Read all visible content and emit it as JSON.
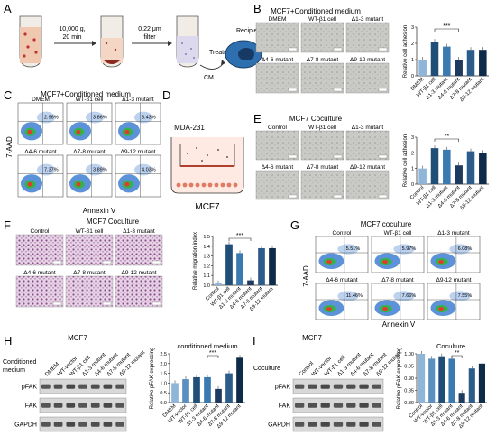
{
  "panels": {
    "A": {
      "letter": "A",
      "spin": "10,000 g,",
      "spin_time": "20 min",
      "filter": "0.22 μm",
      "filter2": "filter",
      "treatment": "Treatment",
      "cm": "CM",
      "recipient": "Recipient cell"
    },
    "B": {
      "letter": "B",
      "title": "MCF7+Conditioned medium",
      "tiles": [
        "DMEM",
        "WT-β1 cell",
        "Δ1-3 mutant",
        "Δ4-6 mutant",
        "Δ7-8 mutant",
        "Δ9-12 mutant"
      ],
      "sig": "***"
    },
    "C": {
      "letter": "C",
      "title": "MCF7+Conditioned medium",
      "ylabel": "7-AAD",
      "xlabel": "Annexin V",
      "tiles": [
        "DMEM",
        "WT-β1 cell",
        "Δ1-3 mutant",
        "Δ4-6 mutant",
        "Δ7-8 mutant",
        "Δ9-12 mutant"
      ],
      "pcts": [
        "2.96%",
        "3.86%",
        "3.43%",
        "7.37%",
        "3.89%",
        "4.03%"
      ]
    },
    "D": {
      "letter": "D",
      "top": "MDA-231",
      "bottom": "MCF7"
    },
    "E": {
      "letter": "E",
      "title": "MCF7 Coculture",
      "tiles": [
        "Control",
        "WT-β1 cell",
        "Δ1-3 mutant",
        "Δ4-6 mutant",
        "Δ7-8 mutant",
        "Δ9-12 mutant"
      ],
      "sig": "**"
    },
    "F": {
      "letter": "F",
      "title": "MCF7 Coculture",
      "tiles": [
        "Control",
        "WT-β1 cell",
        "Δ1-3 mutant",
        "Δ4-6 mutant",
        "Δ7-8 mutant",
        "Δ9-12 mutant"
      ],
      "sig": "***"
    },
    "G": {
      "letter": "G",
      "title": "MCF7 coculture",
      "ylabel": "7-AAD",
      "xlabel": "Annexin V",
      "tiles": [
        "Control",
        "WT-β1 cell",
        "Δ1-3 mutant",
        "Δ4-6 mutant",
        "Δ7-8 mutant",
        "Δ9-12 mutant"
      ],
      "pcts": [
        "5.51%",
        "5.97%",
        "6.08%",
        "11.46%",
        "7.66%",
        "7.55%"
      ]
    },
    "H": {
      "letter": "H",
      "title": "MCF7",
      "side": "Conditioned",
      "side2": "medium",
      "lanes": [
        "DMEM",
        "WT-vector",
        "WT-β1 cell",
        "Δ1-3 mutant",
        "Δ4-6 mutant",
        "Δ7-8 mutant",
        "Δ9-12 mutant"
      ],
      "blots": [
        "pFAK",
        "FAK",
        "GAPDH"
      ],
      "sig": "***"
    },
    "I": {
      "letter": "I",
      "title": "MCF7",
      "side": "Coculture",
      "lanes": [
        "Control",
        "WT-vector",
        "WT-β1 cell",
        "Δ1-3 mutant",
        "Δ4-6 mutant",
        "Δ7-8 mutant",
        "Δ9-12 mutant"
      ],
      "blots": [
        "pFAK",
        "FAK",
        "GAPDH"
      ],
      "sig": "**"
    }
  },
  "chart_data": [
    {
      "id": "B",
      "type": "bar",
      "title": "",
      "ylabel": "Relative cell adhesion",
      "categories": [
        "DMEM",
        "WT-β1 cell",
        "Δ1-3 mutant",
        "Δ4-6 mutant",
        "Δ7-8 mutant",
        "Δ9-12 mutant"
      ],
      "values": [
        1.0,
        2.1,
        1.8,
        1.0,
        1.6,
        1.6
      ],
      "ylim": [
        0,
        3
      ],
      "ticks": [
        "0",
        "1",
        "2",
        "3"
      ],
      "colors": [
        "#8fb5d9",
        "#1f4e79",
        "#3a7ab0",
        "#1f3a5f",
        "#2c5c8a",
        "#0f2b4a"
      ]
    },
    {
      "id": "E",
      "type": "bar",
      "title": "",
      "ylabel": "Relative cell adhesion",
      "categories": [
        "Control",
        "WT-β1 cell",
        "Δ1-3 mutant",
        "Δ4-6 mutant",
        "Δ7-8 mutant",
        "Δ9-12 mutant"
      ],
      "values": [
        1.0,
        2.3,
        2.2,
        1.2,
        2.1,
        2.0
      ],
      "ylim": [
        0,
        3
      ],
      "ticks": [
        "0",
        "1",
        "2",
        "3"
      ],
      "colors": [
        "#8fb5d9",
        "#1f4e79",
        "#3a7ab0",
        "#1f3a5f",
        "#2c5c8a",
        "#0f2b4a"
      ]
    },
    {
      "id": "F",
      "type": "bar",
      "title": "",
      "ylabel": "Relative migration index",
      "categories": [
        "Control",
        "WT-β1 cell",
        "Δ1-3 mutant",
        "Δ4-6 mutant",
        "Δ7-8 mutant",
        "Δ9-12 mutant"
      ],
      "values": [
        1.02,
        1.42,
        1.33,
        1.05,
        1.38,
        1.38
      ],
      "ylim": [
        1.0,
        1.5
      ],
      "ticks": [
        "1.0",
        "1.1",
        "1.2",
        "1.3",
        "1.4",
        "1.5"
      ],
      "colors": [
        "#8fb5d9",
        "#1f4e79",
        "#3a7ab0",
        "#1f3a5f",
        "#2c5c8a",
        "#0f2b4a"
      ]
    },
    {
      "id": "H",
      "type": "bar",
      "title": "conditioned medium",
      "ylabel": "Relative pFAK expressing",
      "categories": [
        "DMEM",
        "WT-vector",
        "WT-β1 cell",
        "Δ1-3 mutant",
        "Δ4-6 mutant",
        "Δ7-8 mutant",
        "Δ9-12 mutant"
      ],
      "values": [
        1.0,
        1.2,
        1.3,
        1.3,
        0.7,
        1.5,
        2.3
      ],
      "ylim": [
        0,
        2.5
      ],
      "ticks": [
        "0.0",
        "0.5",
        "1.0",
        "1.5",
        "2.0",
        "2.5"
      ],
      "colors": [
        "#8fb5d9",
        "#5a8fc0",
        "#1f4e79",
        "#3a7ab0",
        "#1f3a5f",
        "#2c5c8a",
        "#0f2b4a"
      ]
    },
    {
      "id": "I",
      "type": "bar",
      "title": "Coculture",
      "ylabel": "Relative pFAK expressing",
      "categories": [
        "Control",
        "WT-vector",
        "WT-β1 cell",
        "Δ1-3 mutant",
        "Δ4-6 mutant",
        "Δ7-8 mutant",
        "Δ9-12 mutant"
      ],
      "values": [
        1.0,
        0.98,
        0.99,
        0.98,
        0.84,
        0.94,
        0.96
      ],
      "ylim": [
        0.8,
        1.0
      ],
      "ticks": [
        "0.80",
        "0.85",
        "0.90",
        "0.95",
        "1.00"
      ],
      "colors": [
        "#8fb5d9",
        "#5a8fc0",
        "#1f4e79",
        "#3a7ab0",
        "#1f3a5f",
        "#2c5c8a",
        "#0f2b4a"
      ]
    }
  ]
}
